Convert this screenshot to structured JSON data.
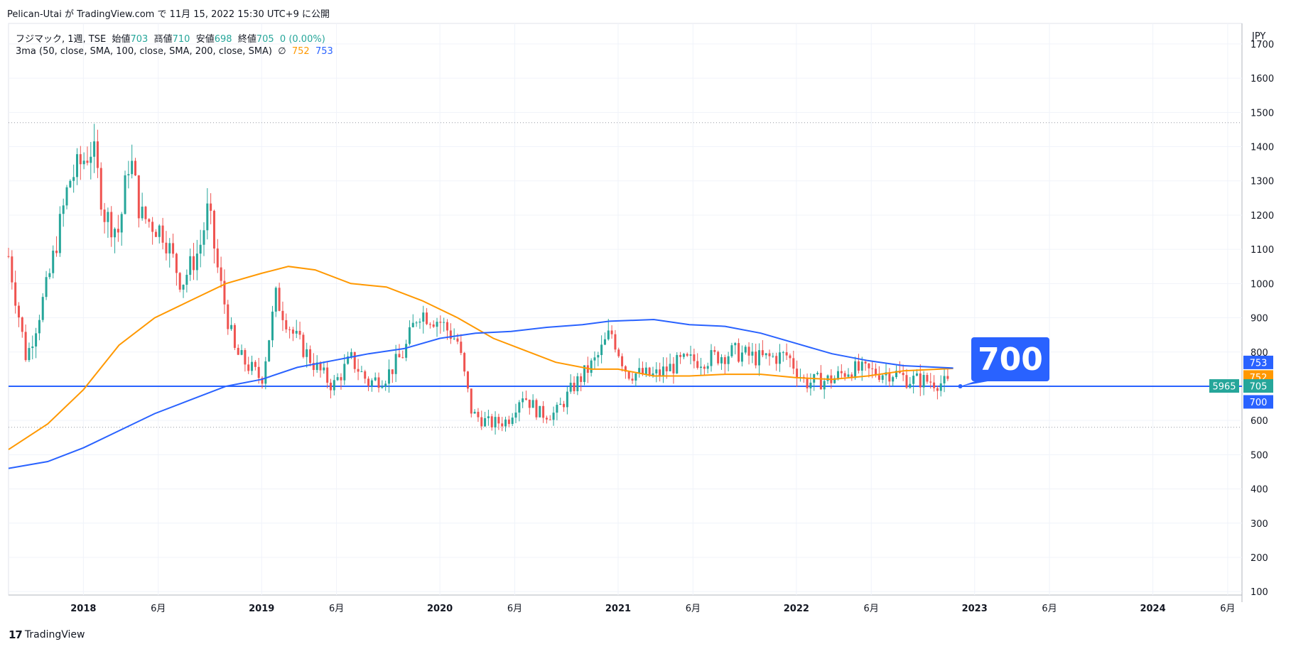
{
  "header": {
    "publish_line": "Pelican-Utai が TradingView.com で 11月 15, 2022 15:30 UTC+9 に公開"
  },
  "legend": {
    "symbol": "フジマック, 1週, TSE",
    "open_label": "始値",
    "open": "703",
    "high_label": "高値",
    "high": "710",
    "low_label": "安値",
    "low": "698",
    "close_label": "終値",
    "close": "705",
    "change": "0 (0.00%)",
    "indicator": "3ma (50, close, SMA, 100, close, SMA, 200, close, SMA)",
    "indicator_null": "∅",
    "ma100_value": "752",
    "ma200_value": "753"
  },
  "footer": {
    "logo": "17",
    "brand": "TradingView"
  },
  "callout": {
    "text": "700"
  },
  "colors": {
    "up": "#26a69a",
    "down": "#ef5350",
    "ma100": "#ff9800",
    "ma200": "#2962ff",
    "line": "#2962ff"
  },
  "chart_data": {
    "type": "candlestick",
    "currency": "JPY",
    "y_ticks": [
      100,
      200,
      300,
      400,
      500,
      600,
      700,
      800,
      900,
      1000,
      1100,
      1200,
      1300,
      1400,
      1500,
      1600,
      1700
    ],
    "ylim": [
      90,
      1760
    ],
    "x_ticks": [
      {
        "label": "2018",
        "t": 2018.0
      },
      {
        "label": "6月",
        "t": 2018.42
      },
      {
        "label": "2019",
        "t": 2019.0
      },
      {
        "label": "6月",
        "t": 2019.42
      },
      {
        "label": "2020",
        "t": 2020.0
      },
      {
        "label": "6月",
        "t": 2020.42
      },
      {
        "label": "2021",
        "t": 2021.0
      },
      {
        "label": "6月",
        "t": 2021.42
      },
      {
        "label": "2022",
        "t": 2022.0
      },
      {
        "label": "6月",
        "t": 2022.42
      },
      {
        "label": "2023",
        "t": 2023.0
      },
      {
        "label": "6月",
        "t": 2023.42
      },
      {
        "label": "2024",
        "t": 2024.0
      },
      {
        "label": "6月",
        "t": 2024.42
      }
    ],
    "xlim": [
      2017.58,
      2024.5
    ],
    "horizontal_lines": [
      {
        "name": "high-dotted",
        "value": 1470,
        "style": "dotted"
      },
      {
        "name": "low-dotted",
        "value": 580,
        "style": "dotted"
      },
      {
        "name": "support-line",
        "value": 700,
        "style": "solid"
      }
    ],
    "price_tags": [
      {
        "name": "ma200-tag",
        "text": "753",
        "value": 753,
        "color": "#2962ff"
      },
      {
        "name": "ma100-tag",
        "text": "752",
        "value": 752,
        "color": "#ff9800"
      },
      {
        "name": "close-tag",
        "text": "705",
        "value": 705,
        "color": "#26a69a"
      },
      {
        "name": "line-tag",
        "text": "700",
        "value": 700,
        "color": "#2962ff"
      }
    ],
    "countdown_tag": "5965",
    "key_points": [
      [
        2017.58,
        1080
      ],
      [
        2017.68,
        780
      ],
      [
        2017.8,
        1000
      ],
      [
        2017.92,
        1300
      ],
      [
        2018.05,
        1400
      ],
      [
        2018.12,
        1200
      ],
      [
        2018.2,
        1150
      ],
      [
        2018.26,
        1380
      ],
      [
        2018.32,
        1200
      ],
      [
        2018.45,
        1150
      ],
      [
        2018.55,
        1000
      ],
      [
        2018.65,
        1100
      ],
      [
        2018.7,
        1220
      ],
      [
        2018.76,
        1020
      ],
      [
        2018.85,
        800
      ],
      [
        2019.0,
        720
      ],
      [
        2019.08,
        960
      ],
      [
        2019.18,
        850
      ],
      [
        2019.3,
        760
      ],
      [
        2019.4,
        700
      ],
      [
        2019.5,
        780
      ],
      [
        2019.6,
        710
      ],
      [
        2019.7,
        730
      ],
      [
        2019.8,
        800
      ],
      [
        2019.88,
        920
      ],
      [
        2020.0,
        890
      ],
      [
        2020.1,
        830
      ],
      [
        2020.18,
        620
      ],
      [
        2020.28,
        590
      ],
      [
        2020.38,
        600
      ],
      [
        2020.46,
        680
      ],
      [
        2020.56,
        620
      ],
      [
        2020.65,
        620
      ],
      [
        2020.75,
        700
      ],
      [
        2020.88,
        780
      ],
      [
        2020.96,
        860
      ],
      [
        2021.05,
        740
      ],
      [
        2021.2,
        730
      ],
      [
        2021.35,
        770
      ],
      [
        2021.5,
        780
      ],
      [
        2021.65,
        800
      ],
      [
        2021.8,
        780
      ],
      [
        2021.95,
        790
      ],
      [
        2022.05,
        710
      ],
      [
        2022.2,
        720
      ],
      [
        2022.3,
        750
      ],
      [
        2022.45,
        740
      ],
      [
        2022.55,
        740
      ],
      [
        2022.62,
        720
      ],
      [
        2022.75,
        715
      ],
      [
        2022.86,
        705
      ]
    ],
    "ma100": [
      [
        2017.58,
        515
      ],
      [
        2017.8,
        590
      ],
      [
        2018.0,
        690
      ],
      [
        2018.2,
        820
      ],
      [
        2018.4,
        900
      ],
      [
        2018.6,
        950
      ],
      [
        2018.8,
        1000
      ],
      [
        2019.0,
        1030
      ],
      [
        2019.15,
        1050
      ],
      [
        2019.3,
        1040
      ],
      [
        2019.5,
        1000
      ],
      [
        2019.7,
        990
      ],
      [
        2019.9,
        950
      ],
      [
        2020.1,
        900
      ],
      [
        2020.3,
        840
      ],
      [
        2020.45,
        810
      ],
      [
        2020.65,
        770
      ],
      [
        2020.85,
        750
      ],
      [
        2021.0,
        750
      ],
      [
        2021.2,
        730
      ],
      [
        2021.4,
        730
      ],
      [
        2021.6,
        735
      ],
      [
        2021.8,
        735
      ],
      [
        2022.0,
        725
      ],
      [
        2022.2,
        720
      ],
      [
        2022.4,
        730
      ],
      [
        2022.6,
        745
      ],
      [
        2022.8,
        750
      ],
      [
        2022.88,
        752
      ]
    ],
    "ma200": [
      [
        2017.58,
        460
      ],
      [
        2017.8,
        480
      ],
      [
        2018.0,
        520
      ],
      [
        2018.2,
        570
      ],
      [
        2018.4,
        620
      ],
      [
        2018.6,
        660
      ],
      [
        2018.8,
        700
      ],
      [
        2019.0,
        720
      ],
      [
        2019.2,
        755
      ],
      [
        2019.4,
        775
      ],
      [
        2019.6,
        795
      ],
      [
        2019.8,
        810
      ],
      [
        2020.0,
        840
      ],
      [
        2020.2,
        855
      ],
      [
        2020.4,
        860
      ],
      [
        2020.6,
        872
      ],
      [
        2020.8,
        880
      ],
      [
        2020.95,
        890
      ],
      [
        2021.2,
        895
      ],
      [
        2021.4,
        880
      ],
      [
        2021.6,
        875
      ],
      [
        2021.8,
        855
      ],
      [
        2022.0,
        825
      ],
      [
        2022.2,
        795
      ],
      [
        2022.4,
        775
      ],
      [
        2022.6,
        760
      ],
      [
        2022.8,
        755
      ],
      [
        2022.88,
        753
      ]
    ]
  }
}
